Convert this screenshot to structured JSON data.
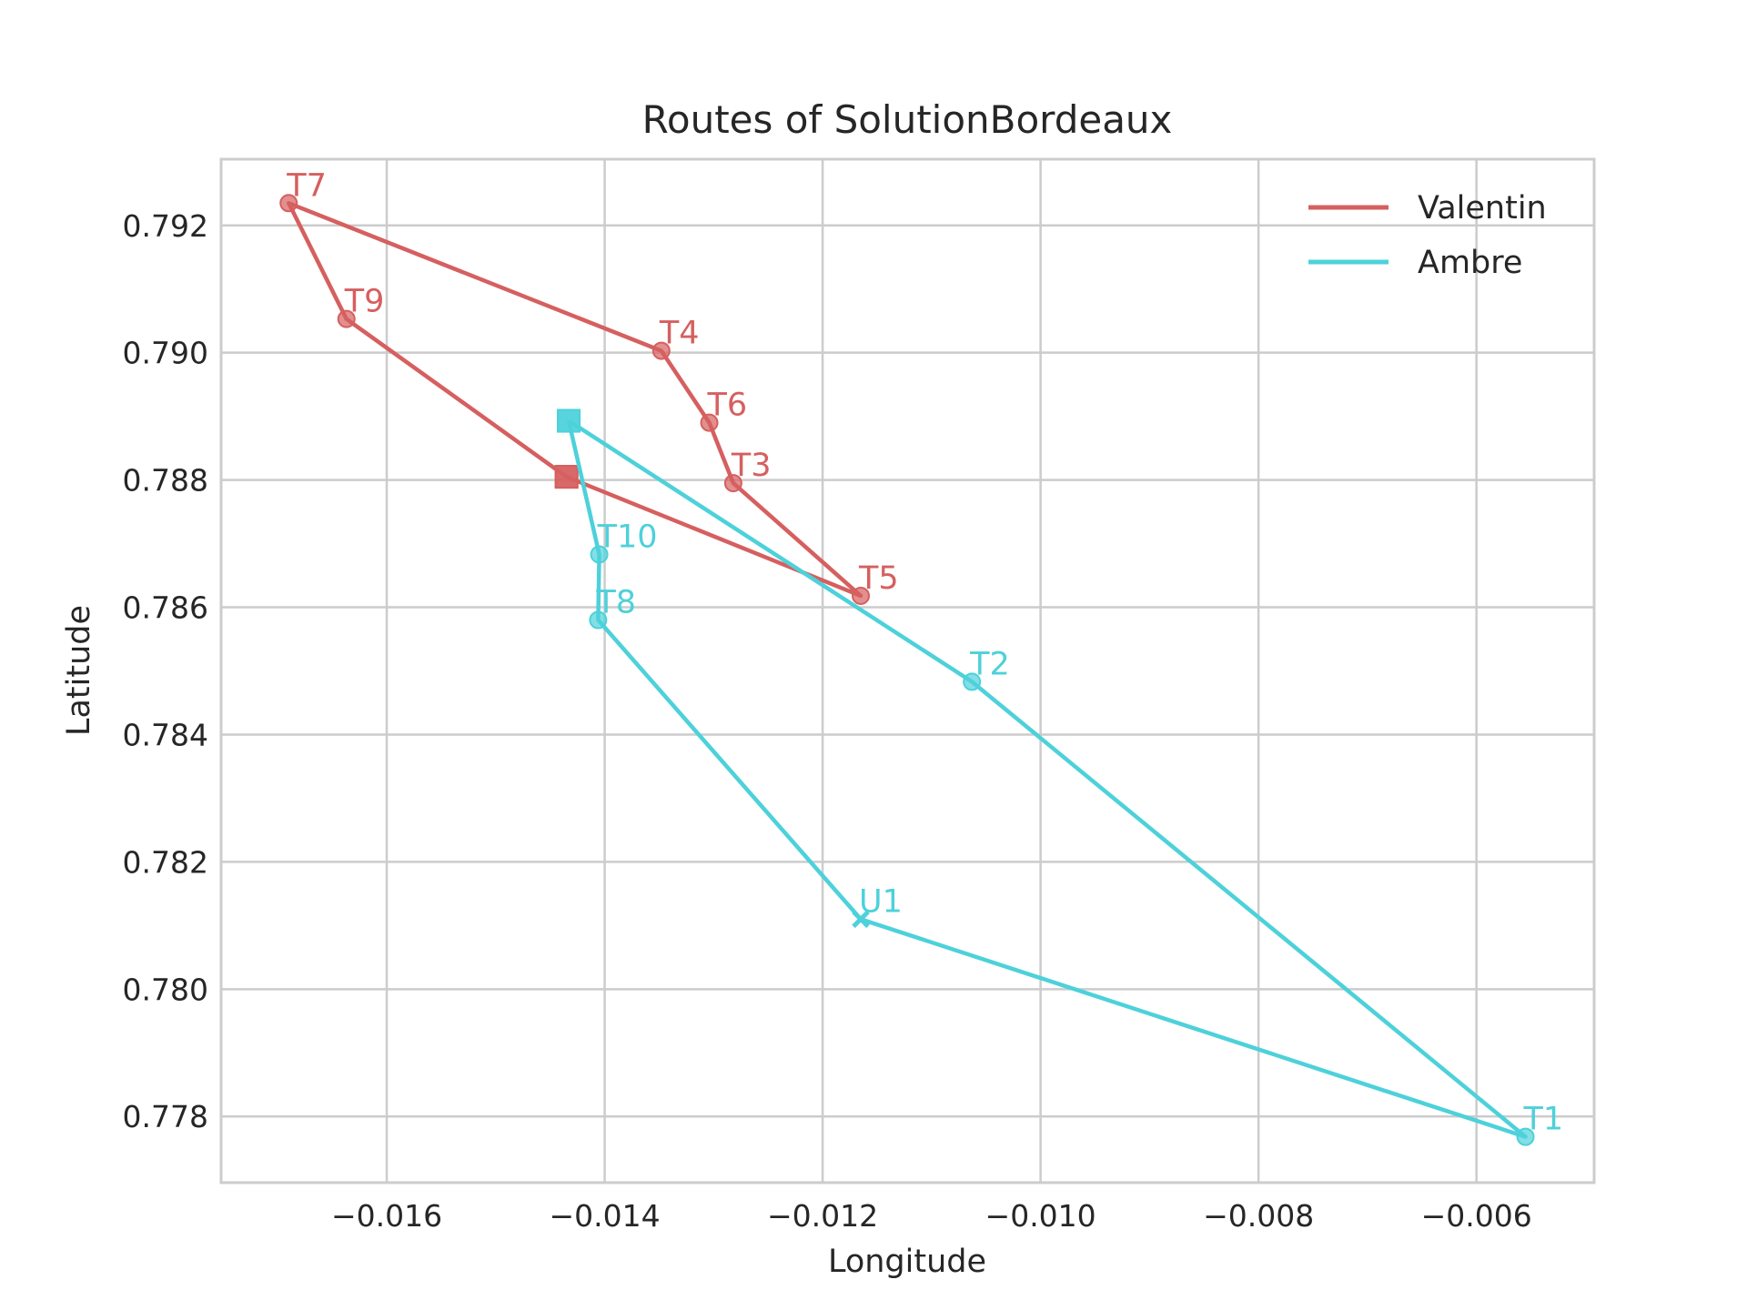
{
  "chart_data": {
    "type": "line",
    "title": "Routes of SolutionBordeaux",
    "xlabel": "Longitude",
    "ylabel": "Latitude",
    "xlim": [
      -0.01752,
      -0.00492
    ],
    "ylim": [
      0.77696,
      0.79304
    ],
    "xticks": [
      -0.016,
      -0.014,
      -0.012,
      -0.01,
      -0.008,
      -0.006
    ],
    "xtick_labels": [
      "−0.016",
      "−0.014",
      "−0.012",
      "−0.010",
      "−0.008",
      "−0.006"
    ],
    "yticks": [
      0.778,
      0.78,
      0.782,
      0.784,
      0.786,
      0.788,
      0.79,
      0.792
    ],
    "ytick_labels": [
      "0.778",
      "0.780",
      "0.782",
      "0.784",
      "0.786",
      "0.788",
      "0.790",
      "0.792"
    ],
    "grid": true,
    "legend_position": "top-right",
    "series": [
      {
        "name": "Valentin",
        "color": "#d65f5f",
        "points": [
          {
            "x": -0.01435,
            "y": 0.78805,
            "label": "",
            "marker": "square"
          },
          {
            "x": -0.01165,
            "y": 0.78618,
            "label": "T5",
            "marker": "circle"
          },
          {
            "x": -0.01282,
            "y": 0.78795,
            "label": "T3",
            "marker": "circle"
          },
          {
            "x": -0.01304,
            "y": 0.7889,
            "label": "T6",
            "marker": "circle"
          },
          {
            "x": -0.01348,
            "y": 0.79003,
            "label": "T4",
            "marker": "circle"
          },
          {
            "x": -0.0169,
            "y": 0.79235,
            "label": "T7",
            "marker": "circle"
          },
          {
            "x": -0.01637,
            "y": 0.79053,
            "label": "T9",
            "marker": "circle"
          },
          {
            "x": -0.01435,
            "y": 0.78805,
            "label": "",
            "marker": "square"
          }
        ]
      },
      {
        "name": "Ambre",
        "color": "#4dd1da",
        "points": [
          {
            "x": -0.01433,
            "y": 0.78893,
            "label": "",
            "marker": "square"
          },
          {
            "x": -0.01063,
            "y": 0.78483,
            "label": "T2",
            "marker": "circle"
          },
          {
            "x": -0.00555,
            "y": 0.77768,
            "label": "T1",
            "marker": "circle"
          },
          {
            "x": -0.01165,
            "y": 0.7811,
            "label": "U1",
            "marker": "x"
          },
          {
            "x": -0.01406,
            "y": 0.7858,
            "label": "T8",
            "marker": "circle"
          },
          {
            "x": -0.01405,
            "y": 0.78683,
            "label": "T10",
            "marker": "circle"
          },
          {
            "x": -0.01433,
            "y": 0.78893,
            "label": "",
            "marker": "square"
          }
        ]
      }
    ]
  }
}
